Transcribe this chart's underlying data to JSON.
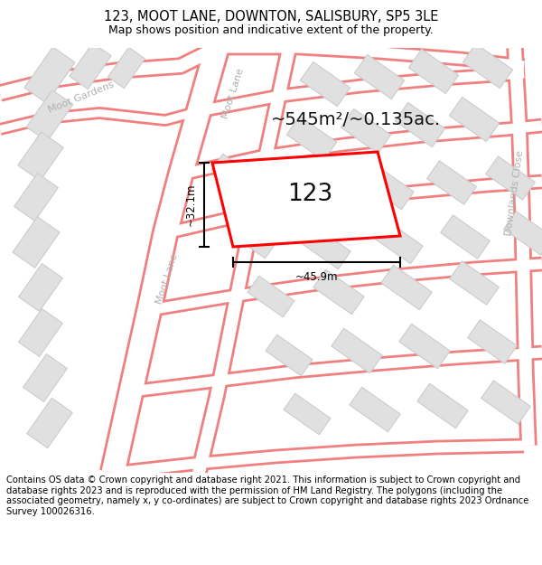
{
  "title_line1": "123, MOOT LANE, DOWNTON, SALISBURY, SP5 3LE",
  "title_line2": "Map shows position and indicative extent of the property.",
  "area_text": "~545m²/~0.135ac.",
  "property_number": "123",
  "dim_width": "~45.9m",
  "dim_height": "~32.1m",
  "disclaimer": "Contains OS data © Crown copyright and database right 2021. This information is subject to Crown copyright and database rights 2023 and is reproduced with the permission of HM Land Registry. The polygons (including the associated geometry, namely x, y co-ordinates) are subject to Crown copyright and database rights 2023 Ordnance Survey 100026316.",
  "bg_color": "#ffffff",
  "road_fill_color": "#ffffff",
  "road_outline_color": "#f08080",
  "building_color": "#e0e0e0",
  "building_outline": "#cccccc",
  "property_color": "#ff0000",
  "street_label_color": "#aaaaaa",
  "title_color": "#000000",
  "dim_color": "#000000",
  "area_color": "#111111"
}
